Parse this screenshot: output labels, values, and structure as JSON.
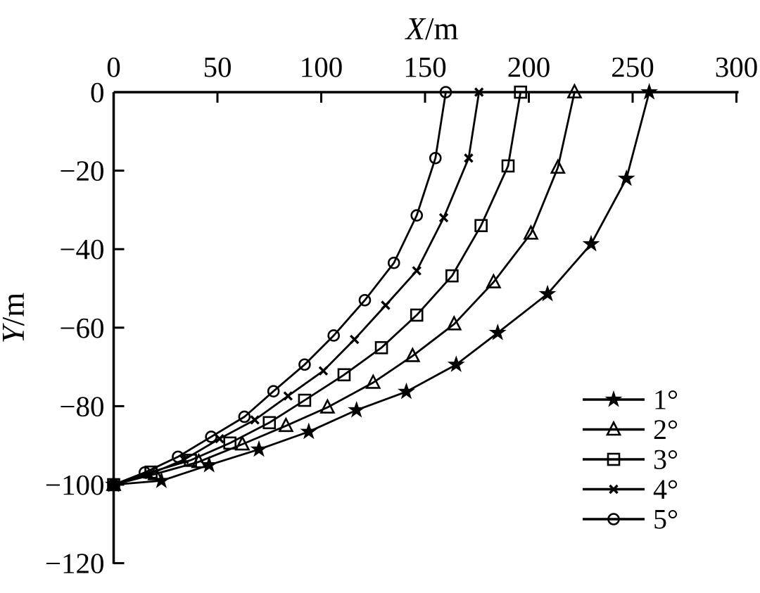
{
  "figure": {
    "background": "#ffffff",
    "ink_color": "#000000"
  },
  "chart_data": {
    "type": "line",
    "title": "X/m",
    "title_variable": "X",
    "title_unit": "/m",
    "ylabel": "Y/m",
    "ylabel_variable": "Y",
    "ylabel_unit": "/m",
    "xlabel_position": "top",
    "ylabel_position": "left",
    "xlim": [
      0,
      300
    ],
    "ylim": [
      -120,
      0
    ],
    "x_ticks": [
      0,
      50,
      100,
      150,
      200,
      250,
      300
    ],
    "y_ticks": [
      0,
      -20,
      -40,
      -60,
      -80,
      -100,
      -120
    ],
    "x_tick_labels": [
      "0",
      "50",
      "100",
      "150",
      "200",
      "250",
      "300"
    ],
    "y_tick_labels": [
      "0",
      "−20",
      "−40",
      "−60",
      "−80",
      "−100",
      "−120"
    ],
    "grid": false,
    "spines": [
      "top",
      "left"
    ],
    "legend_position": "lower right",
    "series": [
      {
        "name": "1°",
        "marker": "star",
        "line_color": "#000000",
        "points": [
          [
            0,
            -100
          ],
          [
            23,
            -99
          ],
          [
            46,
            -95
          ],
          [
            70,
            -91
          ],
          [
            94,
            -86.5
          ],
          [
            117,
            -81
          ],
          [
            141,
            -76.3
          ],
          [
            165,
            -69.4
          ],
          [
            185,
            -61.3
          ],
          [
            209,
            -51.4
          ],
          [
            230,
            -38.7
          ],
          [
            247,
            -22
          ],
          [
            258,
            0
          ]
        ]
      },
      {
        "name": "2°",
        "marker": "triangle",
        "line_color": "#000000",
        "points": [
          [
            0,
            -100
          ],
          [
            20,
            -97.3
          ],
          [
            41,
            -94.2
          ],
          [
            62,
            -89.7
          ],
          [
            83,
            -85
          ],
          [
            103,
            -80.3
          ],
          [
            125,
            -74
          ],
          [
            144,
            -67.2
          ],
          [
            164,
            -59.1
          ],
          [
            183,
            -48.4
          ],
          [
            201,
            -36
          ],
          [
            214,
            -19.2
          ],
          [
            222,
            0
          ]
        ]
      },
      {
        "name": "3°",
        "marker": "square",
        "line_color": "#000000",
        "points": [
          [
            0,
            -100
          ],
          [
            18,
            -96.8
          ],
          [
            37,
            -93.8
          ],
          [
            56,
            -89.4
          ],
          [
            75,
            -84.2
          ],
          [
            92,
            -78.5
          ],
          [
            111,
            -72
          ],
          [
            129,
            -65.1
          ],
          [
            146,
            -56.8
          ],
          [
            163,
            -46.8
          ],
          [
            177,
            -34
          ],
          [
            190,
            -18.8
          ],
          [
            196,
            0
          ]
        ]
      },
      {
        "name": "4°",
        "marker": "x",
        "line_color": "#000000",
        "points": [
          [
            0,
            -100
          ],
          [
            17,
            -97.4
          ],
          [
            34,
            -93.6
          ],
          [
            51,
            -88.3
          ],
          [
            68,
            -83.5
          ],
          [
            84,
            -77.4
          ],
          [
            101,
            -71
          ],
          [
            116,
            -63
          ],
          [
            131,
            -54.3
          ],
          [
            146,
            -45.5
          ],
          [
            159,
            -32
          ],
          [
            171,
            -16.8
          ],
          [
            176,
            0
          ]
        ]
      },
      {
        "name": "5°",
        "marker": "circle",
        "line_color": "#000000",
        "points": [
          [
            0,
            -100
          ],
          [
            15,
            -96.9
          ],
          [
            31,
            -92.9
          ],
          [
            47,
            -87.8
          ],
          [
            63,
            -82.7
          ],
          [
            77,
            -76.2
          ],
          [
            92,
            -69.4
          ],
          [
            106,
            -62
          ],
          [
            121,
            -53
          ],
          [
            135,
            -43.5
          ],
          [
            146,
            -31.4
          ],
          [
            155,
            -16.8
          ],
          [
            160,
            0
          ]
        ]
      }
    ]
  }
}
